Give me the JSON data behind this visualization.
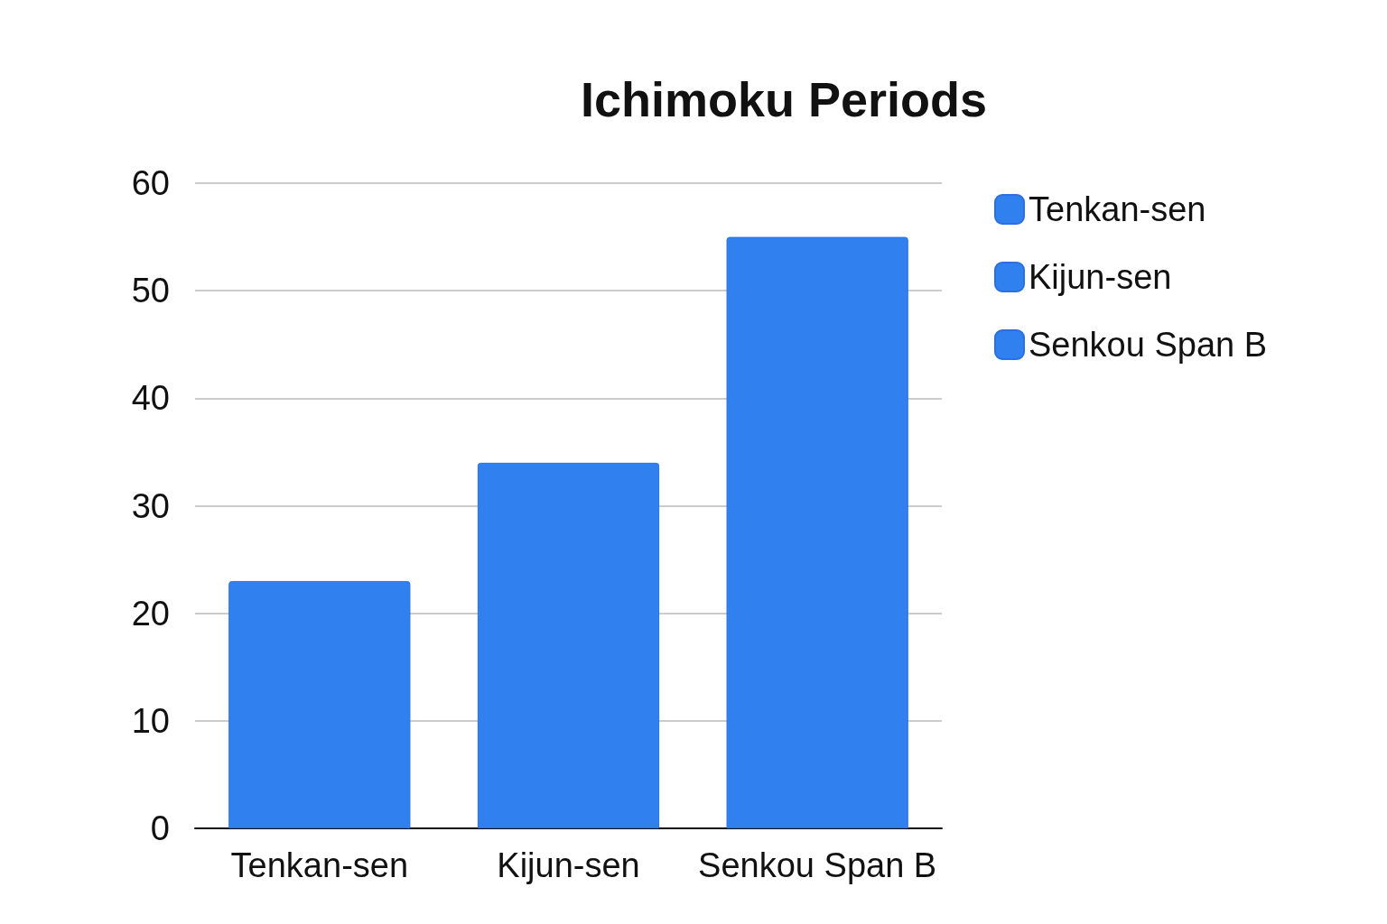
{
  "chart_data": {
    "type": "bar",
    "title": "Ichimoku Periods",
    "categories": [
      "Tenkan-sen",
      "Kijun-sen",
      "Senkou Span B"
    ],
    "series": [
      {
        "name": "Tenkan-sen",
        "color": "#3080f0",
        "values": [
          23,
          null,
          null
        ]
      },
      {
        "name": "Kijun-sen",
        "color": "#3080f0",
        "values": [
          null,
          34,
          null
        ]
      },
      {
        "name": "Senkou Span B",
        "color": "#3080f0",
        "values": [
          null,
          null,
          55
        ]
      }
    ],
    "ylim": [
      0,
      60
    ],
    "yticks": [
      0,
      10,
      20,
      30,
      40,
      50,
      60
    ],
    "grid": "y",
    "legend": "right"
  }
}
